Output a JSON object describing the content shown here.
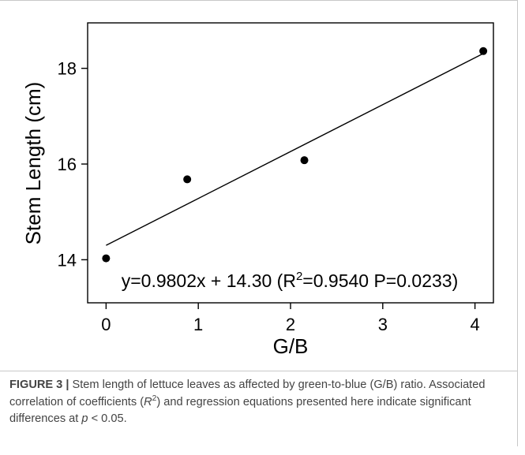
{
  "chart_data": {
    "type": "scatter",
    "xlabel": "G/B",
    "ylabel": "Stem Length (cm)",
    "xlim": [
      -0.2,
      4.2
    ],
    "ylim": [
      13.1,
      18.95
    ],
    "xticks": [
      "0",
      "1",
      "2",
      "3",
      "4"
    ],
    "yticks": [
      "14",
      "16",
      "18"
    ],
    "points": [
      {
        "x": 0.0,
        "y": 14.03
      },
      {
        "x": 0.88,
        "y": 15.68
      },
      {
        "x": 2.15,
        "y": 16.08
      },
      {
        "x": 4.09,
        "y": 18.36
      }
    ],
    "fit_line": {
      "slope": 0.9802,
      "intercept": 14.3,
      "x_range": [
        0.0,
        4.09
      ]
    },
    "equation": {
      "prefix": "y=0.9802x + 14.30 (R",
      "sup": "2",
      "suffix": "=0.9540 P=0.0233)"
    },
    "grid": false,
    "legend": "none",
    "marker_color": "#000000"
  },
  "caption": {
    "label": "FIGURE 3 |",
    "text_1": " Stem length of lettuce leaves as affected by green-to-blue (G/B) ratio. Associated correlation of coefficients (",
    "r_symbol": "R",
    "r_sup": "2",
    "text_2": ") and regression equations presented here indicate significant differences at ",
    "p_symbol": "p",
    "text_3": " < 0.05."
  }
}
